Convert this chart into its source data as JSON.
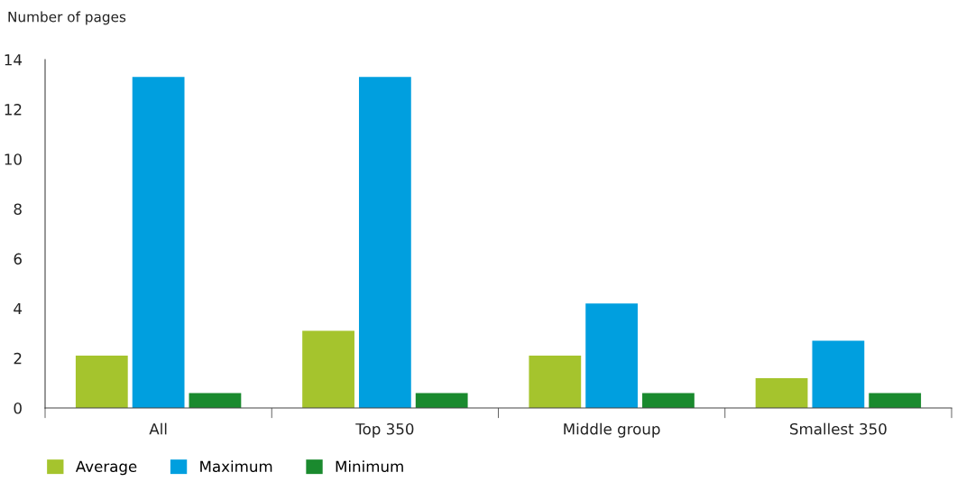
{
  "chart_data": {
    "type": "bar",
    "ylabel": "Number of pages",
    "categories": [
      "All",
      "Top 350",
      "Middle group",
      "Smallest 350"
    ],
    "series": [
      {
        "name": "Average",
        "color": "#a5c42d",
        "values": [
          2.1,
          3.1,
          2.1,
          1.2
        ]
      },
      {
        "name": "Maximum",
        "color": "#009fdf",
        "values": [
          13.3,
          13.3,
          4.2,
          2.7
        ]
      },
      {
        "name": "Minimum",
        "color": "#1a8a2e",
        "values": [
          0.6,
          0.6,
          0.6,
          0.6
        ]
      }
    ],
    "ylim": [
      0,
      14
    ],
    "yticks": [
      0,
      2,
      4,
      6,
      8,
      10,
      12,
      14
    ],
    "grid": false,
    "legend": "bottom left"
  }
}
